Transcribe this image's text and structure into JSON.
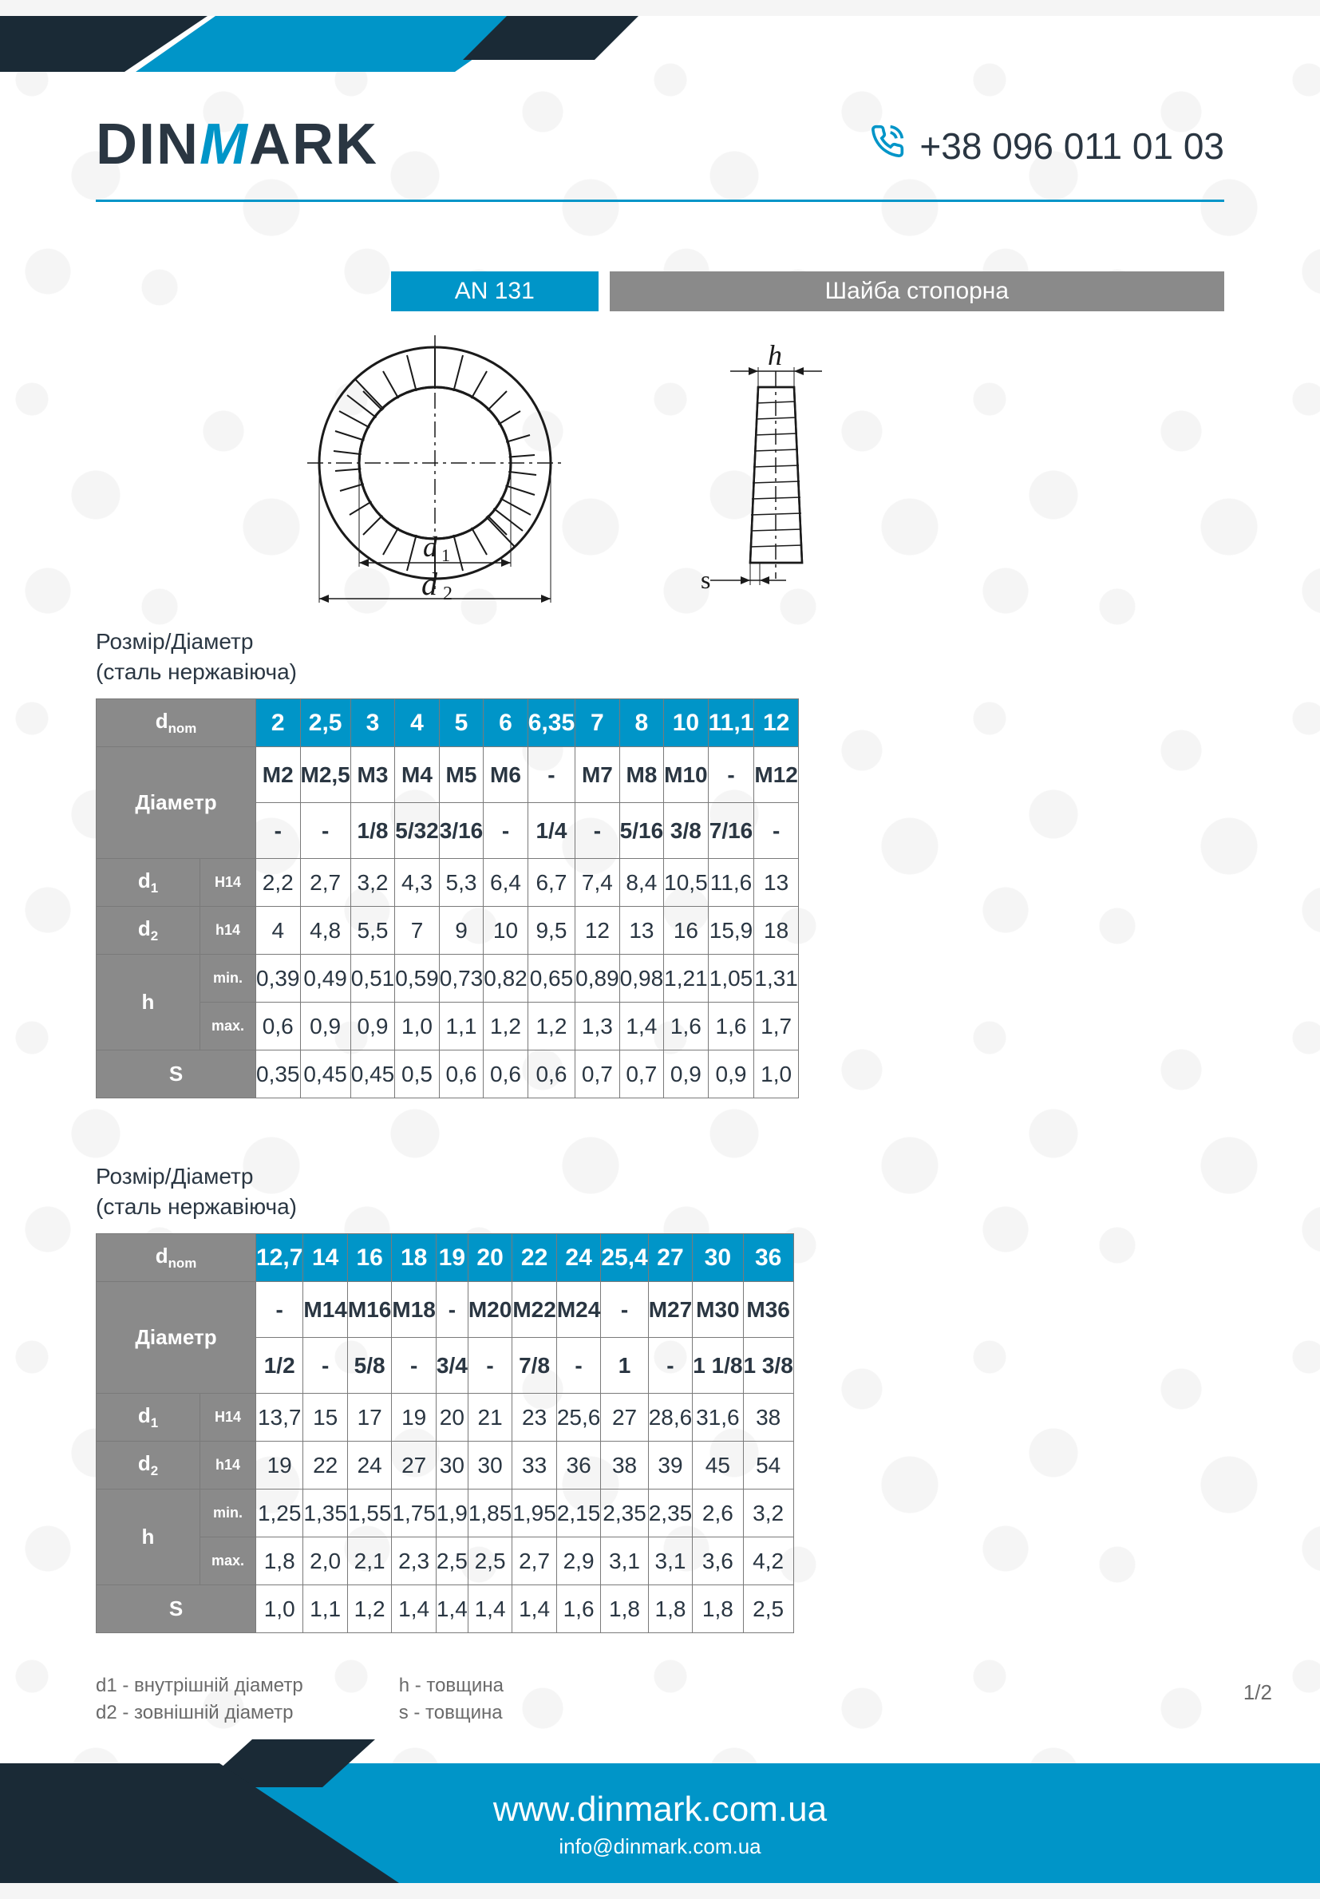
{
  "colors": {
    "brand_blue": "#0095c8",
    "brand_dark": "#1a2a36",
    "gray_header": "#8a8a8a",
    "text": "#2a3642",
    "border": "#7a7a7a"
  },
  "header": {
    "logo_prefix": "DIN",
    "logo_m": "M",
    "logo_suffix": "ARK",
    "phone": "+38 096 011 01 03"
  },
  "title": {
    "code": "AN 131",
    "name": "Шайба стопорна"
  },
  "diagram": {
    "labels": {
      "d1": "d₁",
      "d2": "d₂",
      "h": "h",
      "s": "s"
    }
  },
  "section_label_line1": "Розмір/Діаметр",
  "section_label_line2": "(сталь нержавіюча)",
  "table_headers": {
    "dnom": "dnom",
    "diameter": "Діаметр",
    "d1": "d₁",
    "d1_tol": "H14",
    "d2": "d₂",
    "d2_tol": "h14",
    "h": "h",
    "h_min": "min.",
    "h_max": "max.",
    "s": "S"
  },
  "table1": {
    "dnom": [
      "2",
      "2,5",
      "3",
      "4",
      "5",
      "6",
      "6,35",
      "7",
      "8",
      "10",
      "11,1",
      "12"
    ],
    "diam_m": [
      "M2",
      "M2,5",
      "M3",
      "M4",
      "M5",
      "M6",
      "-",
      "M7",
      "M8",
      "M10",
      "-",
      "M12"
    ],
    "diam_f": [
      "-",
      "-",
      "1/8",
      "5/32",
      "3/16",
      "-",
      "1/4",
      "-",
      "5/16",
      "3/8",
      "7/16",
      "-"
    ],
    "d1": [
      "2,2",
      "2,7",
      "3,2",
      "4,3",
      "5,3",
      "6,4",
      "6,7",
      "7,4",
      "8,4",
      "10,5",
      "11,6",
      "13"
    ],
    "d2": [
      "4",
      "4,8",
      "5,5",
      "7",
      "9",
      "10",
      "9,5",
      "12",
      "13",
      "16",
      "15,9",
      "18"
    ],
    "h_min": [
      "0,39",
      "0,49",
      "0,51",
      "0,59",
      "0,73",
      "0,82",
      "0,65",
      "0,89",
      "0,98",
      "1,21",
      "1,05",
      "1,31"
    ],
    "h_max": [
      "0,6",
      "0,9",
      "0,9",
      "1,0",
      "1,1",
      "1,2",
      "1,2",
      "1,3",
      "1,4",
      "1,6",
      "1,6",
      "1,7"
    ],
    "s": [
      "0,35",
      "0,45",
      "0,45",
      "0,5",
      "0,6",
      "0,6",
      "0,6",
      "0,7",
      "0,7",
      "0,9",
      "0,9",
      "1,0"
    ]
  },
  "table2": {
    "dnom": [
      "12,7",
      "14",
      "16",
      "18",
      "19",
      "20",
      "22",
      "24",
      "25,4",
      "27",
      "30",
      "36"
    ],
    "diam_m": [
      "-",
      "M14",
      "M16",
      "M18",
      "-",
      "M20",
      "M22",
      "M24",
      "-",
      "M27",
      "M30",
      "M36"
    ],
    "diam_f": [
      "1/2",
      "-",
      "5/8",
      "-",
      "3/4",
      "-",
      "7/8",
      "-",
      "1",
      "-",
      "1 1/8",
      "1 3/8"
    ],
    "d1": [
      "13,7",
      "15",
      "17",
      "19",
      "20",
      "21",
      "23",
      "25,6",
      "27",
      "28,6",
      "31,6",
      "38"
    ],
    "d2": [
      "19",
      "22",
      "24",
      "27",
      "30",
      "30",
      "33",
      "36",
      "38",
      "39",
      "45",
      "54"
    ],
    "h_min": [
      "1,25",
      "1,35",
      "1,55",
      "1,75",
      "1,9",
      "1,85",
      "1,95",
      "2,15",
      "2,35",
      "2,35",
      "2,6",
      "3,2"
    ],
    "h_max": [
      "1,8",
      "2,0",
      "2,1",
      "2,3",
      "2,5",
      "2,5",
      "2,7",
      "2,9",
      "3,1",
      "3,1",
      "3,6",
      "4,2"
    ],
    "s": [
      "1,0",
      "1,1",
      "1,2",
      "1,4",
      "1,4",
      "1,4",
      "1,4",
      "1,6",
      "1,8",
      "1,8",
      "1,8",
      "2,5"
    ]
  },
  "legend": {
    "d1": "d1 - внутрішній діаметр",
    "d2": "d2 - зовнішній діаметр",
    "h": "h - товщина",
    "s": "s - товщина"
  },
  "page_number": "1/2",
  "footer": {
    "url": "www.dinmark.com.ua",
    "email": "info@dinmark.com.ua"
  }
}
